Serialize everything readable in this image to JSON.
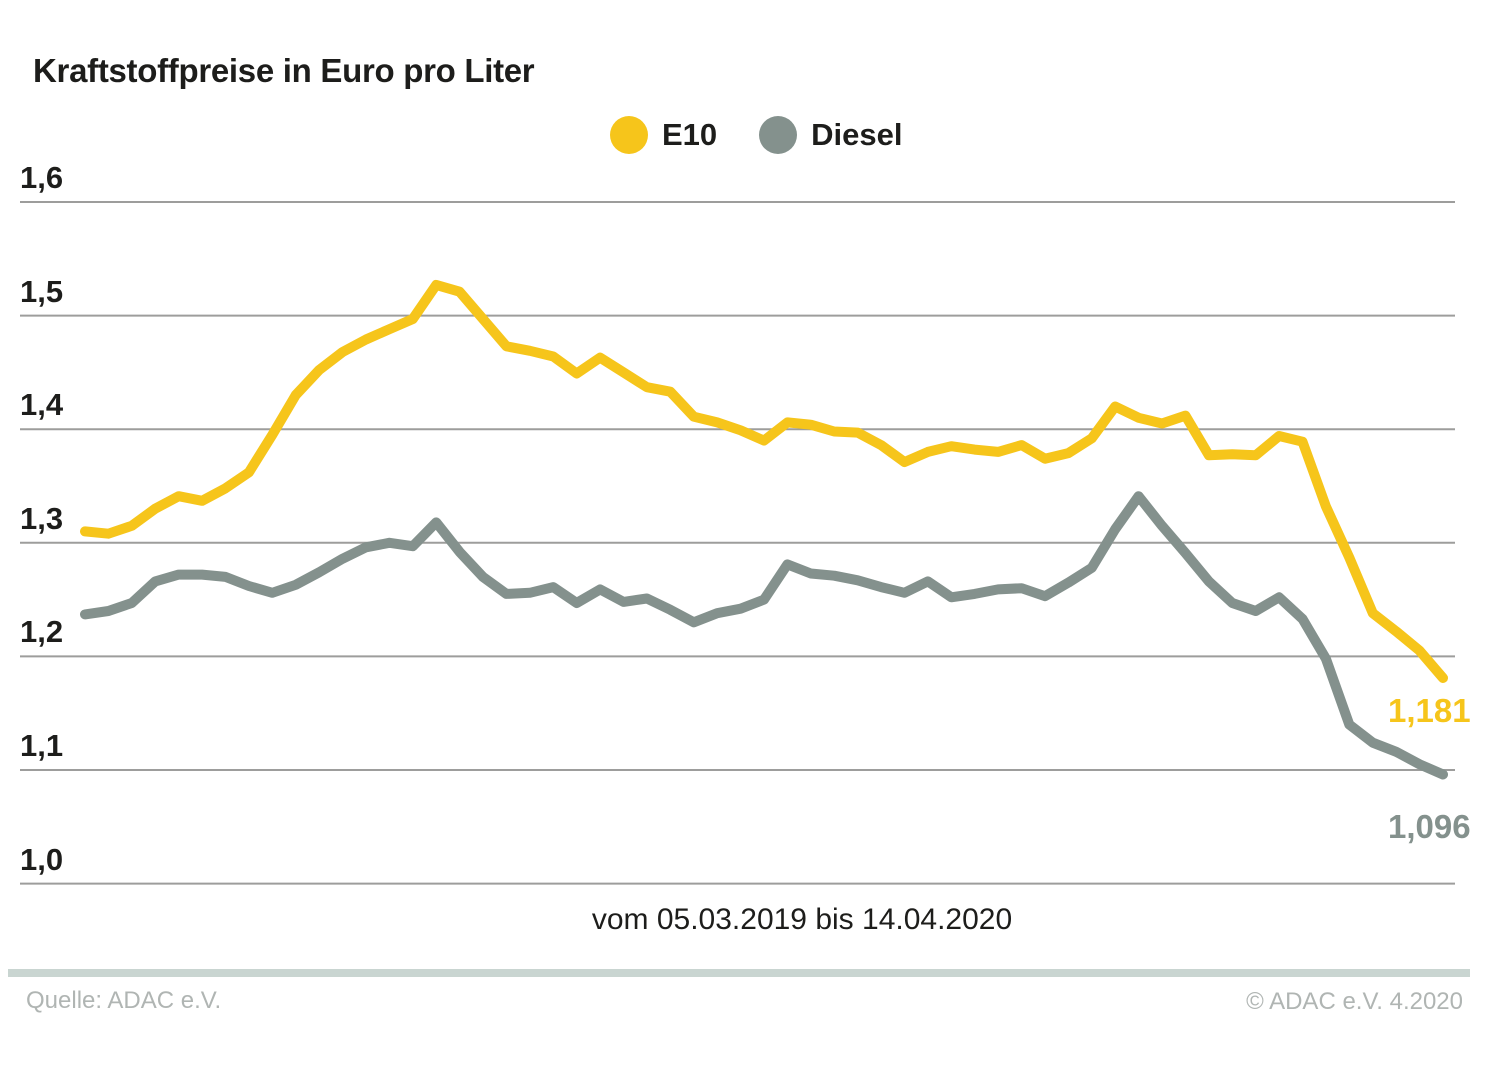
{
  "title": "Kraftstoffpreise in Euro pro Liter",
  "caption": "vom 05.03.2019 bis 14.04.2020",
  "footer": {
    "source": "Quelle: ADAC e.V.",
    "copyright": "© ADAC e.V. 4.2020"
  },
  "colors": {
    "e10": "#f6c51b",
    "diesel": "#84918d",
    "gridline": "#9d9d9c",
    "separator_bar": "#c9d5d1",
    "footer_text": "#b0b5b3",
    "text": "#1d1d1b"
  },
  "chart_data": {
    "type": "line",
    "title": "Kraftstoffpreise in Euro pro Liter",
    "x_period": "vom 05.03.2019 bis 14.04.2020",
    "x_unit": "weeks from 05.03.2019 to 14.04.2020",
    "ylabel": "Euro pro Liter",
    "ylim": [
      1.0,
      1.6
    ],
    "y_ticks": [
      "1,6",
      "1,5",
      "1,4",
      "1,3",
      "1,2",
      "1,1",
      "1,0"
    ],
    "grid": "horizontal",
    "legend_position": "top-center",
    "series": [
      {
        "name": "E10",
        "color": "#f6c51b",
        "end_label": "1,181",
        "final_value": 1.181,
        "values": [
          1.31,
          1.308,
          1.315,
          1.33,
          1.341,
          1.337,
          1.348,
          1.362,
          1.395,
          1.43,
          1.452,
          1.468,
          1.479,
          1.488,
          1.497,
          1.527,
          1.521,
          1.497,
          1.473,
          1.469,
          1.464,
          1.449,
          1.463,
          1.45,
          1.437,
          1.433,
          1.411,
          1.406,
          1.399,
          1.39,
          1.406,
          1.404,
          1.398,
          1.397,
          1.386,
          1.371,
          1.38,
          1.385,
          1.382,
          1.38,
          1.386,
          1.374,
          1.379,
          1.392,
          1.42,
          1.41,
          1.405,
          1.412,
          1.377,
          1.378,
          1.377,
          1.394,
          1.389,
          1.332,
          1.287,
          1.238,
          1.222,
          1.205,
          1.181
        ]
      },
      {
        "name": "Diesel",
        "color": "#84918d",
        "end_label": "1,096",
        "final_value": 1.096,
        "values": [
          1.237,
          1.24,
          1.247,
          1.266,
          1.272,
          1.272,
          1.27,
          1.262,
          1.256,
          1.263,
          1.274,
          1.286,
          1.296,
          1.3,
          1.297,
          1.318,
          1.292,
          1.27,
          1.255,
          1.256,
          1.261,
          1.247,
          1.259,
          1.248,
          1.251,
          1.241,
          1.23,
          1.238,
          1.242,
          1.25,
          1.281,
          1.273,
          1.271,
          1.267,
          1.261,
          1.256,
          1.266,
          1.252,
          1.255,
          1.259,
          1.26,
          1.253,
          1.265,
          1.278,
          1.312,
          1.341,
          1.315,
          1.291,
          1.266,
          1.247,
          1.24,
          1.252,
          1.233,
          1.198,
          1.14,
          1.124,
          1.116,
          1.105,
          1.096
        ]
      }
    ]
  }
}
